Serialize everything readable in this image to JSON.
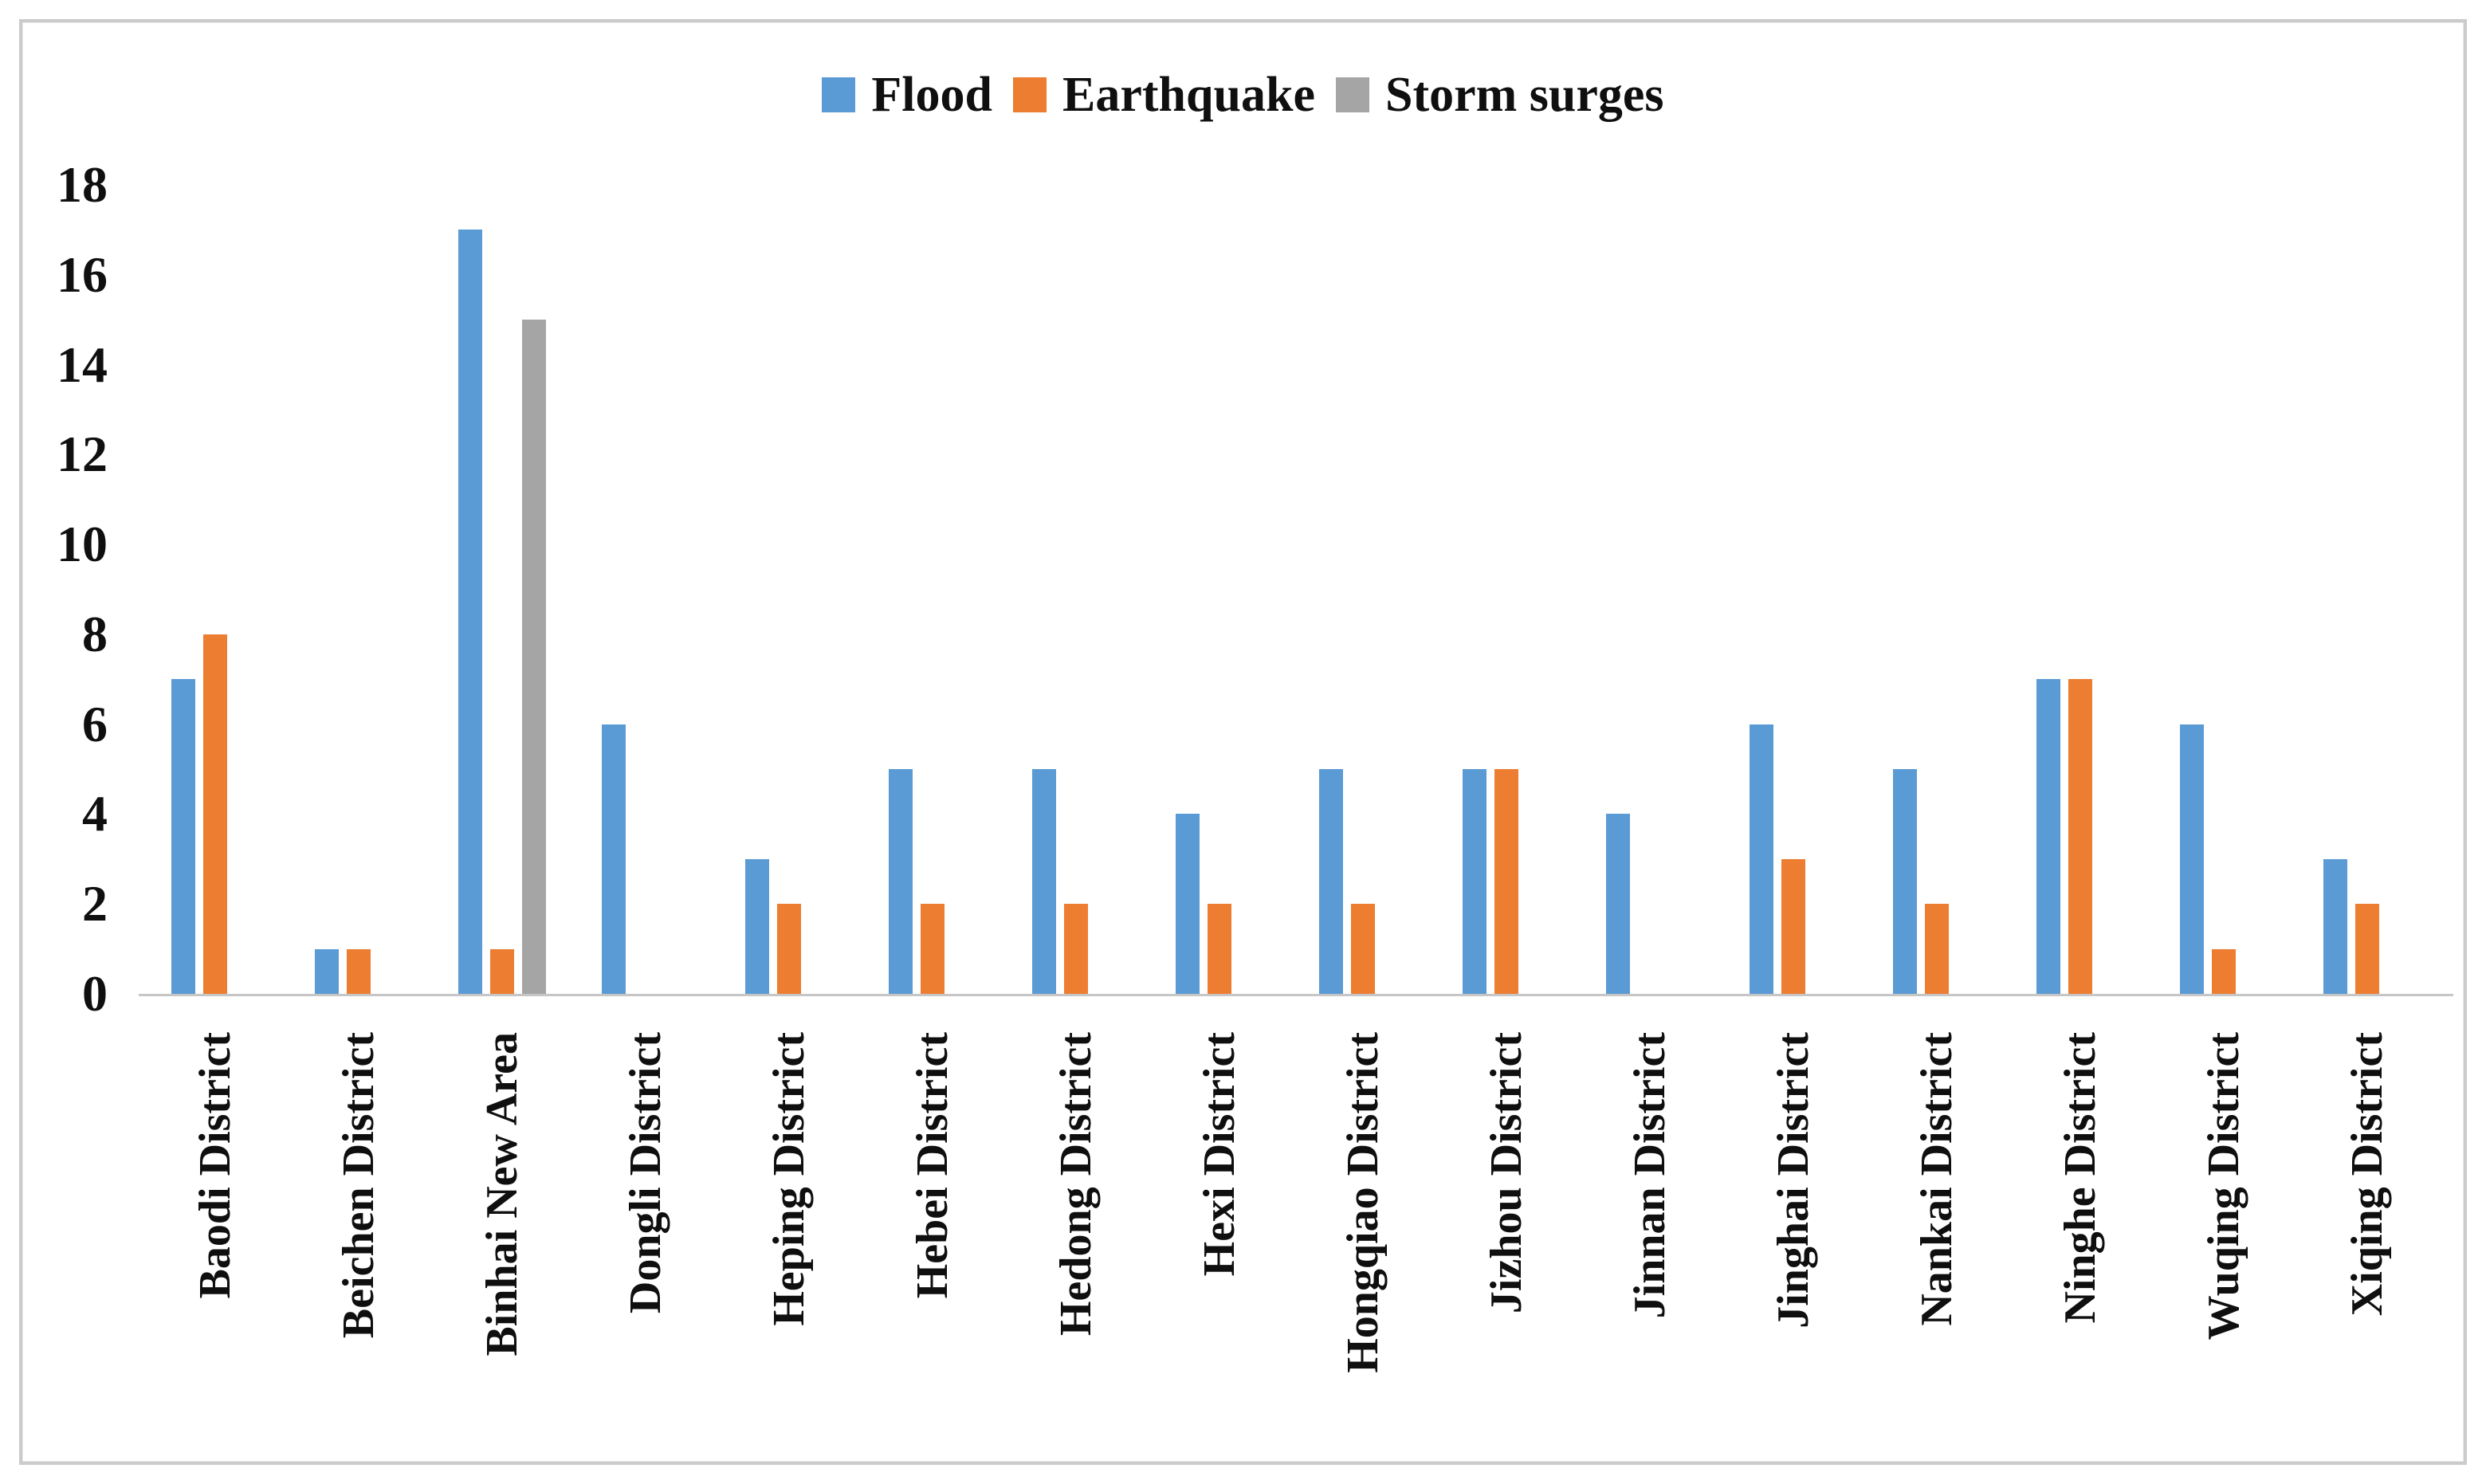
{
  "window": {
    "background": "#ffffff",
    "frame_border_color": "#cbcbcb"
  },
  "legend": {
    "items": [
      {
        "label": "Flood",
        "color": "#5B9BD5"
      },
      {
        "label": "Earthquake",
        "color": "#ED7D31"
      },
      {
        "label": "Storm surges",
        "color": "#A5A5A5"
      }
    ]
  },
  "chart_data": {
    "type": "bar",
    "title": "",
    "xlabel": "",
    "ylabel": "",
    "categories": [
      "Baodi District",
      "Beichen District",
      "Binhai New Area",
      "Dongli District",
      "Heping District",
      "Hebei District",
      "Hedong District",
      "Hexi District",
      "Hongqiao District",
      "Jizhou District",
      "Jinnan District",
      "Jinghai District",
      "Nankai District",
      "Ninghe District",
      "Wuqing District",
      "Xiqing District"
    ],
    "series": [
      {
        "name": "Flood",
        "color": "#5B9BD5",
        "values": [
          7,
          1,
          17,
          6,
          3,
          5,
          5,
          4,
          5,
          5,
          4,
          6,
          5,
          7,
          6,
          3
        ]
      },
      {
        "name": "Earthquake",
        "color": "#ED7D31",
        "values": [
          8,
          1,
          1,
          0,
          2,
          2,
          2,
          2,
          2,
          5,
          0,
          3,
          2,
          7,
          1,
          2
        ]
      },
      {
        "name": "Storm surges",
        "color": "#A5A5A5",
        "values": [
          0,
          0,
          15,
          0,
          0,
          0,
          0,
          0,
          0,
          0,
          0,
          0,
          0,
          0,
          0,
          0
        ]
      }
    ],
    "ylim": [
      0,
      18
    ],
    "yticks": [
      0,
      2,
      4,
      6,
      8,
      10,
      12,
      14,
      16,
      18
    ],
    "grid": false,
    "legend_position": "top-center",
    "axis_line_color": "#c6c6c6",
    "tick_label_color": "#0f0f0f"
  }
}
